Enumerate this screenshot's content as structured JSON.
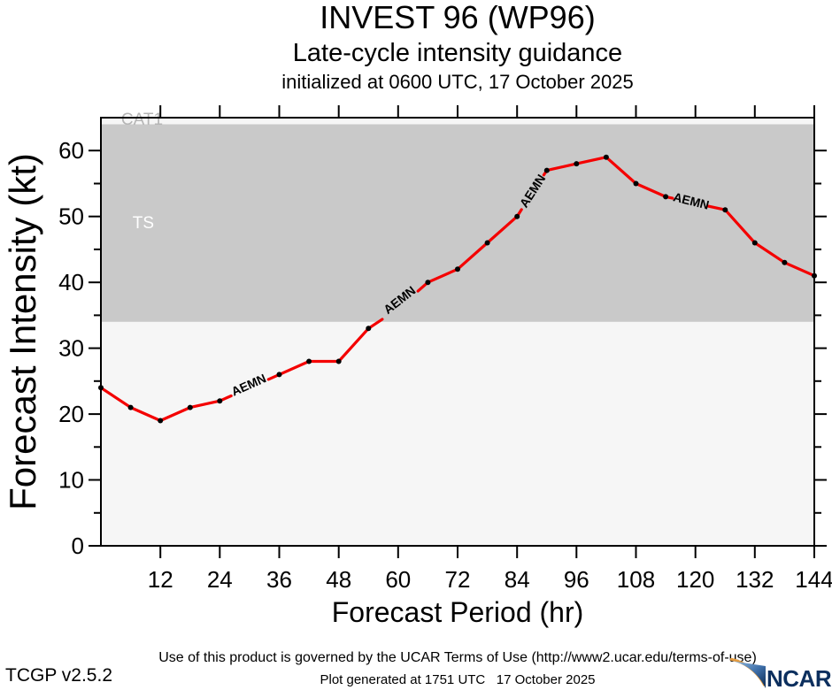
{
  "header": {
    "title": "INVEST 96 (WP96)",
    "subtitle": "Late-cycle intensity guidance",
    "init_line": "initialized at 0600 UTC, 17 October 2025"
  },
  "chart_data": {
    "type": "line",
    "title": "INVEST 96 (WP96)",
    "xlabel": "Forecast Period (hr)",
    "ylabel": "Forecast Intensity (kt)",
    "xlim": [
      0,
      144
    ],
    "ylim": [
      0,
      65
    ],
    "xticks": [
      12,
      24,
      36,
      48,
      60,
      72,
      84,
      96,
      108,
      120,
      132,
      144
    ],
    "yticks": [
      0,
      10,
      20,
      30,
      40,
      50,
      60
    ],
    "yticks_minor": [
      5,
      15,
      25,
      35,
      45,
      55
    ],
    "grid": false,
    "legend": "none",
    "bands": [
      {
        "label": "below-TS",
        "from": 0,
        "to": 34,
        "color": "#f6f6f6"
      },
      {
        "label": "TS",
        "from": 34,
        "to": 64,
        "color": "#c9c9c9"
      },
      {
        "label": "CAT1",
        "from": 64,
        "to": 65,
        "color": "#f6f6f6"
      }
    ],
    "band_labels": [
      {
        "text": "TS",
        "hr": 6.4,
        "kt": 48.2,
        "color": "#ffffff"
      },
      {
        "text": "CAT1",
        "hr": 4.1,
        "kt": 63.9,
        "color": "#b5b5b5"
      }
    ],
    "series": [
      {
        "name": "AEMN",
        "color": "#f40000",
        "x": [
          0,
          6,
          12,
          18,
          24,
          30,
          36,
          42,
          48,
          54,
          60,
          66,
          72,
          78,
          84,
          90,
          96,
          102,
          108,
          114,
          120,
          126,
          132,
          138,
          144
        ],
        "values": [
          24,
          21,
          19,
          21,
          22,
          24,
          26,
          28,
          28,
          33,
          36,
          40,
          42,
          46,
          50,
          57,
          58,
          59,
          55,
          53,
          52,
          51,
          46,
          43,
          41
        ]
      }
    ],
    "line_labels": [
      {
        "text": "AEMN",
        "hr": 29.9,
        "kt": 24.3,
        "angle": -24
      },
      {
        "text": "AEMN",
        "hr": 60.4,
        "kt": 37.2,
        "angle": -38
      },
      {
        "text": "AEMN",
        "hr": 87.3,
        "kt": 53.8,
        "angle": -57
      },
      {
        "text": "AEMN",
        "hr": 119.1,
        "kt": 52.2,
        "angle": 14
      }
    ],
    "label_gaps_hr": [
      [
        26.3,
        33.8
      ],
      [
        56.8,
        64.0
      ],
      [
        84.9,
        89.4
      ],
      [
        115.4,
        122.5
      ]
    ]
  },
  "footer": {
    "terms": "Use of this product is governed by the UCAR Terms of Use (http://www2.ucar.edu/terms-of-use)",
    "version": "TCGP v2.5.2",
    "generated": "Plot generated at 1751 UTC   17 October 2025",
    "logo_text": "NCAR"
  }
}
